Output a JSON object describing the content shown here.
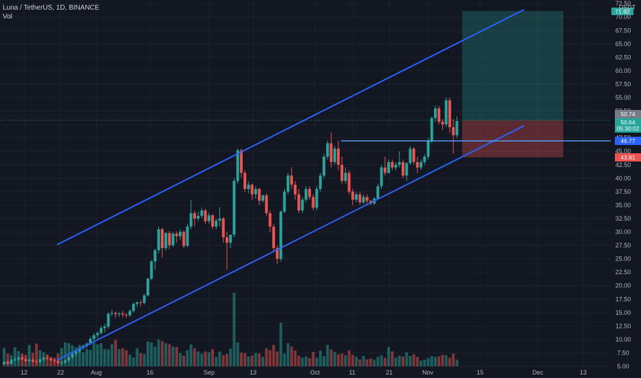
{
  "header": {
    "symbol_line": "Luna / TetherUS, 1D, BINANCE",
    "vol_label": "Vol"
  },
  "price_axis": {
    "currency": "USDT",
    "ticks": [
      "72.50",
      "70.00",
      "67.50",
      "65.00",
      "62.50",
      "60.00",
      "57.50",
      "55.00",
      "52.50",
      "50.00",
      "47.50",
      "45.00",
      "42.50",
      "40.00",
      "37.50",
      "35.00",
      "32.50",
      "30.00",
      "27.50",
      "25.00",
      "22.50",
      "20.00",
      "17.50",
      "15.00",
      "12.50",
      "10.00",
      "7.50",
      "5.00"
    ]
  },
  "time_axis": {
    "labels": [
      "12",
      "22",
      "Aug",
      "16",
      "Sep",
      "13",
      "Oct",
      "11",
      "21",
      "Nov",
      "15",
      "Dec",
      "13"
    ]
  },
  "badges": {
    "target": "71.60",
    "prev_price": "50.74",
    "last_price": "50.64",
    "countdown": "05:30:02",
    "level": "46.77",
    "stop": "43.81"
  },
  "colors": {
    "background": "#131722",
    "up": "#26a69a",
    "down": "#ef5350",
    "trendline": "#2962ff",
    "level_line": "#5b9cf6",
    "profit_zone": "#26a69a",
    "loss_zone": "#ef5350"
  },
  "chart_data": {
    "type": "candlestick",
    "xlabel": "",
    "ylabel": "",
    "ylim": [
      5,
      72.5
    ],
    "candles": [
      [
        5.4,
        5.9,
        5.3,
        5.8
      ],
      [
        5.8,
        6.1,
        5.3,
        5.5
      ],
      [
        5.5,
        6.4,
        5.4,
        6.2
      ],
      [
        6.2,
        6.6,
        5.9,
        6.3
      ],
      [
        6.3,
        6.9,
        6.0,
        6.6
      ],
      [
        6.6,
        7.0,
        6.1,
        6.3
      ],
      [
        6.3,
        6.7,
        5.9,
        6.0
      ],
      [
        6.0,
        6.4,
        5.8,
        6.2
      ],
      [
        6.2,
        6.5,
        5.7,
        5.9
      ],
      [
        5.9,
        6.2,
        5.5,
        5.8
      ],
      [
        5.8,
        6.4,
        5.6,
        6.3
      ],
      [
        6.3,
        6.8,
        6.0,
        6.6
      ],
      [
        6.6,
        7.0,
        6.2,
        6.4
      ],
      [
        6.4,
        6.6,
        6.0,
        6.1
      ],
      [
        6.1,
        6.4,
        5.7,
        6.0
      ],
      [
        6.0,
        6.3,
        5.4,
        5.6
      ],
      [
        5.6,
        6.0,
        5.3,
        5.7
      ],
      [
        5.7,
        6.2,
        5.5,
        6.1
      ],
      [
        6.1,
        6.9,
        5.9,
        6.7
      ],
      [
        6.7,
        7.5,
        6.4,
        7.3
      ],
      [
        7.3,
        8.0,
        7.0,
        7.8
      ],
      [
        7.8,
        8.6,
        7.5,
        8.4
      ],
      [
        8.4,
        9.1,
        8.0,
        8.8
      ],
      [
        8.8,
        9.5,
        8.4,
        9.2
      ],
      [
        9.2,
        10.5,
        8.9,
        10.1
      ],
      [
        10.1,
        11.2,
        9.5,
        10.8
      ],
      [
        10.8,
        11.5,
        10.2,
        11.2
      ],
      [
        11.2,
        12.6,
        10.9,
        12.1
      ],
      [
        12.1,
        12.9,
        11.3,
        12.4
      ],
      [
        12.4,
        15.0,
        12.0,
        14.8
      ],
      [
        14.8,
        15.5,
        14.3,
        14.9
      ],
      [
        14.9,
        15.2,
        14.0,
        14.7
      ],
      [
        14.7,
        15.1,
        14.2,
        14.8
      ],
      [
        14.8,
        15.3,
        14.1,
        14.6
      ],
      [
        14.6,
        14.9,
        14.0,
        14.5
      ],
      [
        14.5,
        15.6,
        14.2,
        15.3
      ],
      [
        15.3,
        16.9,
        15.0,
        16.6
      ],
      [
        16.6,
        17.1,
        16.0,
        16.9
      ],
      [
        16.9,
        17.3,
        16.1,
        16.8
      ],
      [
        16.8,
        18.5,
        16.5,
        18.2
      ],
      [
        18.2,
        21.5,
        18.0,
        21.3
      ],
      [
        21.3,
        24.8,
        21.0,
        24.5
      ],
      [
        24.5,
        26.9,
        23.0,
        26.6
      ],
      [
        26.6,
        31.0,
        26.0,
        30.5
      ],
      [
        30.5,
        30.8,
        25.2,
        27.0
      ],
      [
        27.0,
        30.0,
        26.5,
        29.8
      ],
      [
        29.8,
        30.2,
        26.8,
        27.5
      ],
      [
        27.5,
        30.0,
        27.2,
        29.7
      ],
      [
        29.7,
        30.1,
        28.0,
        29.2
      ],
      [
        29.2,
        30.5,
        28.5,
        30.0
      ],
      [
        30.0,
        30.3,
        27.0,
        27.4
      ],
      [
        27.4,
        31.5,
        27.2,
        31.0
      ],
      [
        31.0,
        36.0,
        30.5,
        33.5
      ],
      [
        33.5,
        34.0,
        31.0,
        32.5
      ],
      [
        32.5,
        33.8,
        32.0,
        33.0
      ],
      [
        33.0,
        34.5,
        32.6,
        34.0
      ],
      [
        34.0,
        34.3,
        31.5,
        32.0
      ],
      [
        32.0,
        33.6,
        31.5,
        33.1
      ],
      [
        33.1,
        33.3,
        30.5,
        31.0
      ],
      [
        31.0,
        32.5,
        30.5,
        32.1
      ],
      [
        32.1,
        34.6,
        31.0,
        32.5
      ],
      [
        32.5,
        32.8,
        28.0,
        29.0
      ],
      [
        29.0,
        30.0,
        23.0,
        28.0
      ],
      [
        28.0,
        29.5,
        27.0,
        29.5
      ],
      [
        29.5,
        40.0,
        29.0,
        39.5
      ],
      [
        39.5,
        45.5,
        39.0,
        45.2
      ],
      [
        45.2,
        45.5,
        40.0,
        41.0
      ],
      [
        41.0,
        41.5,
        37.5,
        38.0
      ],
      [
        38.0,
        39.5,
        37.2,
        38.8
      ],
      [
        38.8,
        39.0,
        36.0,
        37.0
      ],
      [
        37.0,
        38.5,
        36.2,
        38.0
      ],
      [
        38.0,
        38.2,
        35.0,
        35.8
      ],
      [
        35.8,
        37.0,
        35.5,
        36.8
      ],
      [
        36.8,
        37.2,
        33.0,
        33.5
      ],
      [
        33.5,
        34.0,
        30.0,
        31.0
      ],
      [
        31.0,
        31.5,
        26.5,
        27.0
      ],
      [
        27.0,
        27.5,
        24.0,
        25.0
      ],
      [
        25.0,
        34.0,
        24.5,
        33.8
      ],
      [
        33.8,
        38.0,
        33.5,
        37.5
      ],
      [
        37.5,
        41.0,
        37.0,
        40.5
      ],
      [
        40.5,
        42.0,
        38.0,
        38.8
      ],
      [
        38.8,
        39.5,
        36.0,
        37.0
      ],
      [
        37.0,
        38.0,
        33.5,
        34.0
      ],
      [
        34.0,
        36.5,
        33.5,
        36.0
      ],
      [
        36.0,
        38.5,
        35.5,
        38.0
      ],
      [
        38.0,
        38.5,
        36.0,
        36.5
      ],
      [
        36.5,
        37.0,
        34.0,
        34.5
      ],
      [
        34.5,
        38.5,
        34.0,
        38.0
      ],
      [
        38.0,
        41.0,
        37.5,
        40.5
      ],
      [
        40.5,
        44.5,
        40.0,
        44.0
      ],
      [
        44.0,
        47.0,
        43.5,
        46.5
      ],
      [
        46.5,
        48.5,
        42.0,
        43.0
      ],
      [
        43.0,
        46.0,
        42.5,
        45.5
      ],
      [
        45.5,
        47.0,
        41.5,
        42.5
      ],
      [
        42.5,
        44.0,
        39.0,
        39.5
      ],
      [
        39.5,
        42.0,
        39.0,
        41.0
      ],
      [
        41.0,
        41.5,
        37.0,
        37.5
      ],
      [
        37.5,
        38.0,
        35.0,
        36.0
      ],
      [
        36.0,
        37.5,
        35.5,
        37.0
      ],
      [
        37.0,
        37.5,
        35.0,
        35.5
      ],
      [
        35.5,
        37.0,
        35.2,
        36.5
      ],
      [
        36.5,
        37.0,
        35.0,
        35.8
      ],
      [
        35.8,
        36.0,
        35.0,
        35.3
      ],
      [
        35.3,
        36.5,
        35.0,
        36.2
      ],
      [
        36.2,
        39.0,
        36.0,
        38.5
      ],
      [
        38.5,
        42.5,
        38.0,
        42.0
      ],
      [
        42.0,
        44.0,
        40.5,
        41.0
      ],
      [
        41.0,
        43.5,
        40.8,
        43.0
      ],
      [
        43.0,
        43.5,
        41.5,
        42.0
      ],
      [
        42.0,
        43.0,
        41.5,
        42.5
      ],
      [
        42.5,
        45.0,
        42.0,
        43.0
      ],
      [
        43.0,
        43.5,
        40.0,
        40.5
      ],
      [
        40.5,
        43.0,
        39.5,
        42.8
      ],
      [
        42.8,
        46.0,
        42.5,
        45.5
      ],
      [
        45.5,
        45.8,
        42.5,
        43.0
      ],
      [
        43.0,
        44.0,
        41.0,
        42.0
      ],
      [
        42.0,
        43.5,
        41.5,
        43.0
      ],
      [
        43.0,
        44.5,
        42.5,
        44.0
      ],
      [
        44.0,
        47.5,
        43.5,
        47.0
      ],
      [
        47.0,
        51.5,
        46.5,
        51.2
      ],
      [
        51.2,
        53.5,
        50.5,
        53.0
      ],
      [
        53.0,
        53.5,
        50.0,
        50.5
      ],
      [
        50.5,
        51.0,
        49.0,
        50.0
      ],
      [
        50.0,
        55.0,
        49.5,
        54.5
      ],
      [
        54.5,
        55.0,
        48.5,
        49.5
      ],
      [
        49.5,
        51.0,
        44.5,
        48.0
      ],
      [
        48.0,
        51.5,
        47.5,
        50.64
      ]
    ],
    "volume": [
      4.4,
      3.1,
      2.7,
      4.6,
      3.7,
      3.1,
      2.8,
      5.2,
      3.3,
      5.5,
      3.9,
      3.4,
      2.9,
      2.3,
      2.1,
      3.1,
      4.4,
      5.8,
      5.6,
      5.1,
      4.6,
      5.2,
      3.4,
      4.2,
      4.0,
      5.7,
      5.3,
      5.6,
      4.2,
      4.1,
      5.4,
      6.4,
      4.2,
      4.4,
      3.9,
      2.8,
      2.1,
      4.4,
      3.2,
      3.0,
      6.0,
      5.8,
      4.8,
      6.5,
      6.1,
      5.6,
      5.4,
      4.8,
      4.7,
      3.2,
      2.6,
      3.9,
      5.3,
      4.4,
      3.6,
      3.1,
      3.6,
      3.4,
      4.2,
      2.3,
      3.6,
      2.7,
      3.0,
      4.3,
      17.8,
      5.8,
      3.3,
      3.2,
      2.4,
      2.6,
      3.2,
      3.1,
      2.3,
      4.4,
      3.9,
      5.2,
      3.6,
      10.6,
      3.1,
      5.6,
      4.8,
      3.8,
      2.6,
      2.1,
      2.4,
      2.0,
      3.5,
      2.1,
      3.8,
      2.5,
      5.2,
      4.1,
      3.5,
      2.9,
      3.1,
      2.7,
      3.9,
      2.8,
      2.4,
      1.7,
      2.5,
      1.7,
      1.9,
      1.6,
      2.3,
      2.7,
      2.1,
      4.7,
      3.6,
      2.1,
      2.6,
      2.4,
      3.4,
      2.5,
      2.9,
      2.3,
      1.4,
      1.6,
      2.0,
      2.5,
      2.3,
      2.4,
      2.8,
      2.7,
      2.1,
      3.1,
      1.6
    ]
  }
}
